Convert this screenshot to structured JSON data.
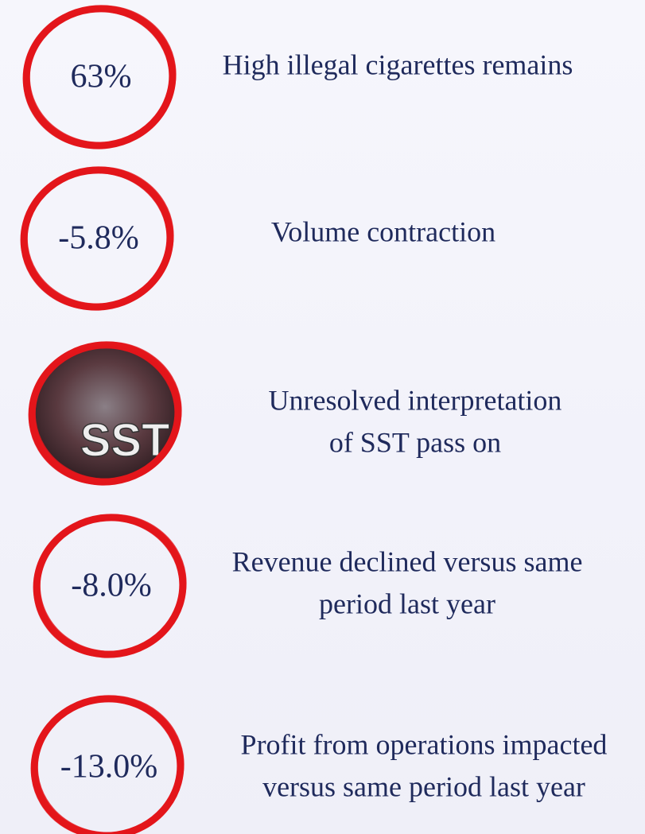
{
  "items": [
    {
      "badge": "63%",
      "lines": [
        "High illegal cigarettes remains"
      ]
    },
    {
      "badge": "-5.8%",
      "lines": [
        "Volume contraction"
      ]
    },
    {
      "badge": "SST",
      "lines": [
        "Unresolved interpretation",
        "of SST pass on"
      ]
    },
    {
      "badge": "-8.0%",
      "lines": [
        "Revenue declined versus same",
        "period last year"
      ]
    },
    {
      "badge": "-13.0%",
      "lines": [
        "Profit from operations impacted",
        "versus same period last year"
      ]
    }
  ]
}
